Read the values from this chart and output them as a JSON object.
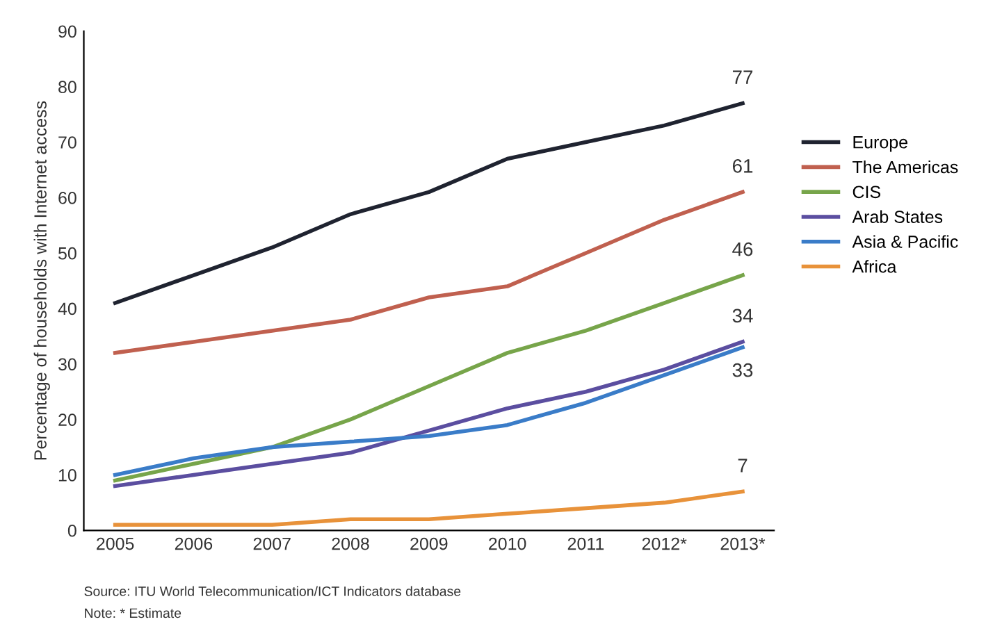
{
  "chart_data": {
    "type": "line",
    "ylabel": "Percentage of households with Internet access",
    "categories": [
      "2005",
      "2006",
      "2007",
      "2008",
      "2009",
      "2010",
      "2011",
      "2012*",
      "2013*"
    ],
    "ylim": [
      0,
      90
    ],
    "yticks": [
      0,
      10,
      20,
      30,
      40,
      50,
      60,
      70,
      80,
      90
    ],
    "grid": false,
    "legend": "right",
    "marker": "none",
    "line_style": "solid",
    "series": [
      {
        "name": "Europe",
        "color": "#1f2330",
        "values": [
          41,
          46,
          51,
          57,
          61,
          67,
          70,
          73,
          77
        ],
        "value_labels": [
          null,
          null,
          null,
          null,
          null,
          null,
          null,
          null,
          "77"
        ]
      },
      {
        "name": "The Americas",
        "color": "#c0604f",
        "values": [
          32,
          34,
          36,
          38,
          42,
          44,
          50,
          56,
          61
        ],
        "value_labels": [
          null,
          null,
          null,
          null,
          null,
          null,
          null,
          null,
          "61"
        ]
      },
      {
        "name": "CIS",
        "color": "#77a54a",
        "values": [
          9,
          12,
          15,
          20,
          26,
          32,
          36,
          41,
          46
        ],
        "value_labels": [
          null,
          null,
          null,
          null,
          null,
          null,
          null,
          null,
          "46"
        ]
      },
      {
        "name": "Arab States",
        "color": "#5b4ea0",
        "values": [
          8,
          10,
          12,
          14,
          18,
          22,
          25,
          29,
          34
        ],
        "value_labels": [
          null,
          null,
          null,
          null,
          null,
          null,
          null,
          null,
          "34"
        ]
      },
      {
        "name": "Asia & Pacific",
        "color": "#3a7cc8",
        "values": [
          10,
          13,
          15,
          16,
          17,
          19,
          23,
          28,
          33
        ],
        "value_labels": [
          null,
          null,
          null,
          null,
          null,
          null,
          null,
          null,
          "33"
        ]
      },
      {
        "name": "Africa",
        "color": "#e8923a",
        "values": [
          1,
          1,
          1,
          2,
          2,
          3,
          4,
          5,
          7
        ],
        "value_labels": [
          null,
          null,
          null,
          null,
          null,
          null,
          null,
          null,
          "7"
        ]
      }
    ],
    "annotations": [
      "Source: ITU World Telecommunication/ICT Indicators database",
      "Note: * Estimate"
    ]
  }
}
